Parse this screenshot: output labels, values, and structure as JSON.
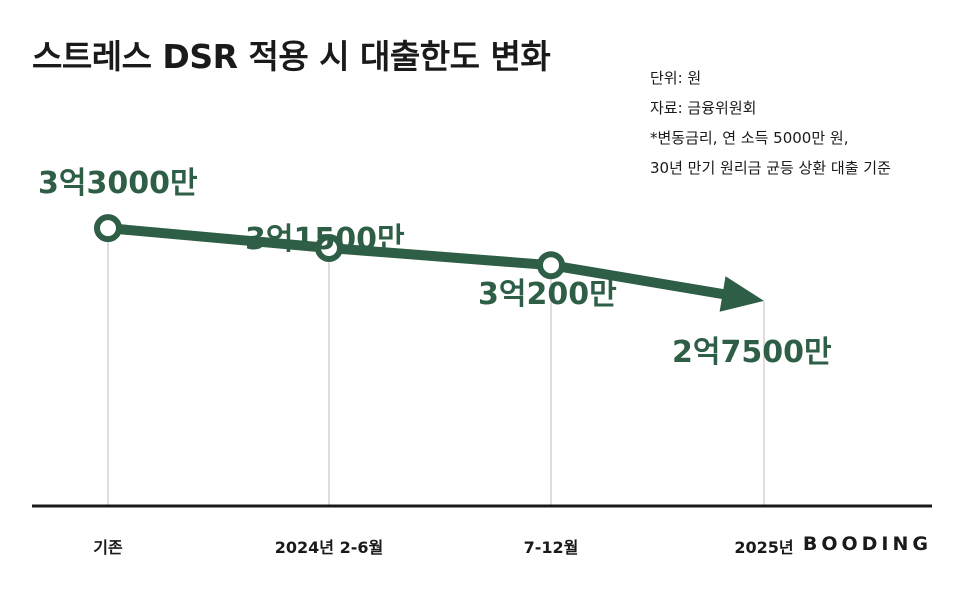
{
  "title": "스트레스 DSR 적용 시 대출한도 변화",
  "notes": {
    "unit": "단위: 원",
    "source": "자료: 금융위원회",
    "condition_1": "*변동금리, 연 소득 5000만 원,",
    "condition_2": "30년 만기 원리금 균등 상환 대출 기준"
  },
  "brand": "BOODING",
  "colors": {
    "accent": "#2e5e45",
    "axis": "#1a1a1a",
    "guide": "#bdbdbd",
    "text": "#1a1a1a"
  },
  "chart_data": {
    "type": "line",
    "title": "스트레스 DSR 적용 시 대출한도 변화",
    "xlabel": "",
    "ylabel": "",
    "unit": "원",
    "categories": [
      "기존",
      "2024년 2-6월",
      "7-12월",
      "2025년"
    ],
    "values": [
      330000000,
      315000000,
      302000000,
      275000000
    ],
    "value_labels": [
      "3억3000만",
      "3억1500만",
      "3억200만",
      "2억7500만"
    ],
    "ylim": [
      120000000,
      380000000
    ],
    "grid": false,
    "legend": "none",
    "last_point_marker": "arrow"
  }
}
